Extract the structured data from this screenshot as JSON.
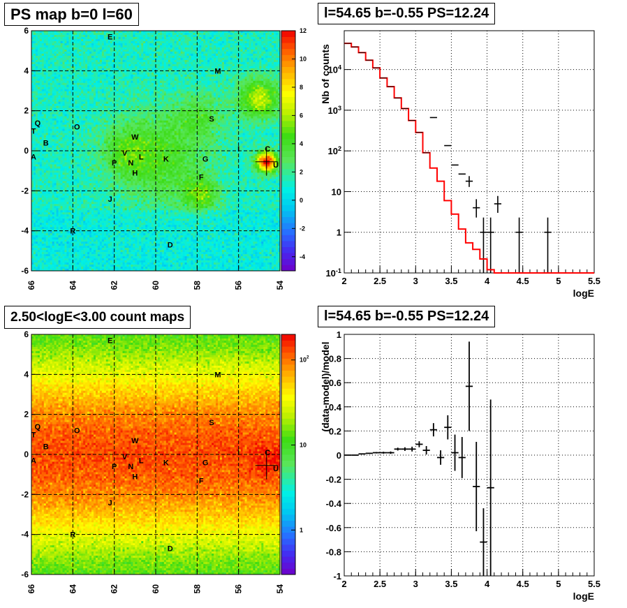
{
  "panels": {
    "ps_map": {
      "title": "PS map b=0 l=60"
    },
    "count_map": {
      "title": "2.50<logE<3.00 count maps"
    },
    "spectrum": {
      "title": "l=54.65 b=-0.55 PS=12.24"
    },
    "residual": {
      "title": "l=54.65 b=-0.55 PS=12.24"
    }
  },
  "chart_data": [
    {
      "type": "heatmap",
      "title": "PS map b=0 l=60",
      "xlim": [
        66,
        54
      ],
      "ylim": [
        -6,
        6
      ],
      "x_ticks": [
        "66",
        "64",
        "62",
        "60",
        "58",
        "56",
        "54"
      ],
      "y_ticks": [
        "-6",
        "-4",
        "-2",
        "0",
        "2",
        "4",
        "6"
      ],
      "grid": true,
      "colorbar": {
        "scale": "linear",
        "range": [
          -5,
          12
        ],
        "ticks": [
          "-4",
          "-2",
          "0",
          "2",
          "4",
          "6",
          "8",
          "10",
          "12"
        ]
      },
      "labels": [
        {
          "t": "E",
          "l": 62.2,
          "b": 5.7
        },
        {
          "t": "M",
          "l": 57.0,
          "b": 4.0
        },
        {
          "t": "S",
          "l": 57.3,
          "b": 1.6
        },
        {
          "t": "Q",
          "l": 65.7,
          "b": 1.4
        },
        {
          "t": "O",
          "l": 63.8,
          "b": 1.2
        },
        {
          "t": "T",
          "l": 65.9,
          "b": 1.0
        },
        {
          "t": "W",
          "l": 61.0,
          "b": 0.7
        },
        {
          "t": "B",
          "l": 65.3,
          "b": 0.4
        },
        {
          "t": "I",
          "l": 56.0,
          "b": 0.1
        },
        {
          "t": "C",
          "l": 54.6,
          "b": 0.1
        },
        {
          "t": "V",
          "l": 61.5,
          "b": -0.1
        },
        {
          "t": "A",
          "l": 65.9,
          "b": -0.3
        },
        {
          "t": "L",
          "l": 60.7,
          "b": -0.3
        },
        {
          "t": "K",
          "l": 59.5,
          "b": -0.4
        },
        {
          "t": "G",
          "l": 57.6,
          "b": -0.4
        },
        {
          "t": "P",
          "l": 62.0,
          "b": -0.6
        },
        {
          "t": "N",
          "l": 61.2,
          "b": -0.6
        },
        {
          "t": "U",
          "l": 54.2,
          "b": -0.7
        },
        {
          "t": "H",
          "l": 61.0,
          "b": -1.1
        },
        {
          "t": "F",
          "l": 57.8,
          "b": -1.3
        },
        {
          "t": "J",
          "l": 62.2,
          "b": -2.4
        },
        {
          "t": "R",
          "l": 64.0,
          "b": -4.0
        },
        {
          "t": "D",
          "l": 59.3,
          "b": -4.7
        }
      ],
      "marker": {
        "l": 54.65,
        "b": -0.55
      },
      "hotspots": [
        {
          "l": 54.65,
          "b": -0.55,
          "peak": 11.0,
          "sigma": 0.35
        },
        {
          "l": 55.0,
          "b": 2.6,
          "peak": 5.0,
          "sigma": 0.7
        },
        {
          "l": 59.8,
          "b": -0.3,
          "peak": 3.0,
          "sigma": 1.6
        },
        {
          "l": 57.8,
          "b": -2.2,
          "peak": 3.5,
          "sigma": 0.6
        },
        {
          "l": 57.8,
          "b": 1.8,
          "peak": 2.0,
          "sigma": 0.8
        },
        {
          "l": 61.5,
          "b": 0.0,
          "peak": 2.0,
          "sigma": 0.8
        }
      ]
    },
    {
      "type": "heatmap",
      "title": "2.50<logE<3.00 count maps",
      "xlim": [
        66,
        54
      ],
      "ylim": [
        -6,
        6
      ],
      "x_ticks": [
        "66",
        "64",
        "62",
        "60",
        "58",
        "56",
        "54"
      ],
      "y_ticks": [
        "-6",
        "-4",
        "-2",
        "0",
        "2",
        "4",
        "6"
      ],
      "grid": true,
      "colorbar": {
        "scale": "log",
        "range": [
          0.3,
          200
        ],
        "ticks": [
          {
            "v": 1,
            "t": "1"
          },
          {
            "v": 10,
            "t": "10"
          },
          {
            "v": 100,
            "t": "10",
            "sup": "2"
          }
        ]
      },
      "profile": {
        "peak_counts": 130,
        "floor_counts": 10,
        "width_b": 2.2
      },
      "labels": [
        {
          "t": "E",
          "l": 62.2,
          "b": 5.7
        },
        {
          "t": "M",
          "l": 57.0,
          "b": 4.0
        },
        {
          "t": "S",
          "l": 57.3,
          "b": 1.6
        },
        {
          "t": "Q",
          "l": 65.7,
          "b": 1.4
        },
        {
          "t": "O",
          "l": 63.8,
          "b": 1.2
        },
        {
          "t": "T",
          "l": 65.9,
          "b": 1.0
        },
        {
          "t": "W",
          "l": 61.0,
          "b": 0.7
        },
        {
          "t": "B",
          "l": 65.3,
          "b": 0.4
        },
        {
          "t": "I",
          "l": 56.0,
          "b": 0.1
        },
        {
          "t": "C",
          "l": 54.6,
          "b": 0.1
        },
        {
          "t": "V",
          "l": 61.5,
          "b": -0.1
        },
        {
          "t": "A",
          "l": 65.9,
          "b": -0.3
        },
        {
          "t": "L",
          "l": 60.7,
          "b": -0.3
        },
        {
          "t": "K",
          "l": 59.5,
          "b": -0.4
        },
        {
          "t": "G",
          "l": 57.6,
          "b": -0.4
        },
        {
          "t": "P",
          "l": 62.0,
          "b": -0.6
        },
        {
          "t": "N",
          "l": 61.2,
          "b": -0.6
        },
        {
          "t": "U",
          "l": 54.2,
          "b": -0.7
        },
        {
          "t": "H",
          "l": 61.0,
          "b": -1.1
        },
        {
          "t": "F",
          "l": 57.8,
          "b": -1.3
        },
        {
          "t": "J",
          "l": 62.2,
          "b": -2.4
        },
        {
          "t": "R",
          "l": 64.0,
          "b": -4.0
        },
        {
          "t": "D",
          "l": 59.3,
          "b": -4.7
        }
      ],
      "marker": {
        "l": 54.65,
        "b": -0.55
      }
    },
    {
      "type": "line",
      "title": "l=54.65 b=-0.55 PS=12.24",
      "xlabel": "logE",
      "ylabel": "Nb of counts",
      "xlim": [
        2,
        5.5
      ],
      "ylim": [
        0.1,
        90000
      ],
      "yscale": "log",
      "grid": true,
      "x_ticks": [
        "2",
        "2.5",
        "3",
        "3.5",
        "4",
        "4.5",
        "5",
        "5.5"
      ],
      "y_ticks": [
        {
          "v": 0.1,
          "t": "10",
          "sup": "-1"
        },
        {
          "v": 1,
          "t": "1",
          "sup": ""
        },
        {
          "v": 10,
          "t": "10",
          "sup": ""
        },
        {
          "v": 100,
          "t": "10",
          "sup": "2"
        },
        {
          "v": 1000,
          "t": "10",
          "sup": "3"
        },
        {
          "v": 10000,
          "t": "10",
          "sup": "4"
        }
      ],
      "model": {
        "name": "model",
        "bin_edges": [
          2.0,
          2.1,
          2.2,
          2.3,
          2.4,
          2.5,
          2.6,
          2.7,
          2.8,
          2.9,
          3.0,
          3.1,
          3.2,
          3.3,
          3.4,
          3.5,
          3.6,
          3.7,
          3.8,
          3.9,
          4.0,
          4.1,
          4.2,
          4.3,
          4.4,
          4.5,
          4.6,
          4.7,
          4.8,
          5.5
        ],
        "values": [
          44000,
          36000,
          26000,
          17000,
          11000,
          6200,
          3800,
          2000,
          1100,
          560,
          285,
          90,
          38,
          18,
          6,
          2.8,
          1.2,
          0.55,
          0.38,
          0.22,
          0.12,
          0.1,
          0.1,
          0.1,
          0.1,
          0.1,
          0.1,
          0.1,
          0.1
        ],
        "color": "#ff0000"
      },
      "data": [
        {
          "x": 3.25,
          "y": 660
        },
        {
          "x": 3.45,
          "y": 135
        },
        {
          "x": 3.55,
          "y": 45
        },
        {
          "x": 3.65,
          "y": 27
        },
        {
          "x": 3.75,
          "y": 18,
          "ylo": 13,
          "yhi": 24
        },
        {
          "x": 3.85,
          "y": 4,
          "ylo": 2.3,
          "yhi": 6.5
        },
        {
          "x": 3.95,
          "y": 1,
          "ylo": 0.1,
          "yhi": 2.3
        },
        {
          "x": 4.05,
          "y": 1,
          "ylo": 0.1,
          "yhi": 2.3
        },
        {
          "x": 4.15,
          "y": 5,
          "ylo": 3,
          "yhi": 7.8
        },
        {
          "x": 4.45,
          "y": 1,
          "ylo": 0.1,
          "yhi": 2.3
        },
        {
          "x": 4.85,
          "y": 1,
          "ylo": 0.1,
          "yhi": 2.3
        }
      ],
      "bin_half_width": 0.05
    },
    {
      "type": "scatter",
      "title": "l=54.65 b=-0.55 PS=12.24",
      "xlabel": "logE",
      "ylabel": "(data-model)/model",
      "xlim": [
        2,
        5.5
      ],
      "ylim": [
        -1,
        1
      ],
      "grid": true,
      "x_ticks": [
        "2",
        "2.5",
        "3",
        "3.5",
        "4",
        "4.5",
        "5",
        "5.5"
      ],
      "y_ticks": [
        "-1",
        "-0.8",
        "-0.6",
        "-0.4",
        "-0.2",
        "0",
        "0.2",
        "0.4",
        "0.6",
        "0.8",
        "1"
      ],
      "bin_half_width": 0.05,
      "data": [
        {
          "x": 2.05,
          "y": 0.0,
          "err": 0.003
        },
        {
          "x": 2.15,
          "y": 0.0,
          "err": 0.003
        },
        {
          "x": 2.25,
          "y": 0.01,
          "err": 0.004
        },
        {
          "x": 2.35,
          "y": 0.015,
          "err": 0.005
        },
        {
          "x": 2.45,
          "y": 0.02,
          "err": 0.006
        },
        {
          "x": 2.55,
          "y": 0.02,
          "err": 0.008
        },
        {
          "x": 2.65,
          "y": 0.02,
          "err": 0.01
        },
        {
          "x": 2.75,
          "y": 0.05,
          "err": 0.012
        },
        {
          "x": 2.85,
          "y": 0.05,
          "err": 0.015
        },
        {
          "x": 2.95,
          "y": 0.05,
          "err": 0.02
        },
        {
          "x": 3.05,
          "y": 0.09,
          "err": 0.025
        },
        {
          "x": 3.15,
          "y": 0.04,
          "err": 0.035
        },
        {
          "x": 3.25,
          "y": 0.21,
          "err": 0.055
        },
        {
          "x": 3.35,
          "y": -0.02,
          "err": 0.06
        },
        {
          "x": 3.45,
          "y": 0.23,
          "err": 0.1
        },
        {
          "x": 3.55,
          "y": 0.02,
          "err": 0.15
        },
        {
          "x": 3.65,
          "y": -0.02,
          "err": 0.17
        },
        {
          "x": 3.75,
          "y": 0.57,
          "err": 0.37
        },
        {
          "x": 3.85,
          "y": -0.26,
          "err": 0.37
        },
        {
          "x": 3.95,
          "y": -0.72,
          "err": 0.28
        },
        {
          "x": 4.05,
          "y": -0.27,
          "err": 0.73
        }
      ]
    }
  ]
}
